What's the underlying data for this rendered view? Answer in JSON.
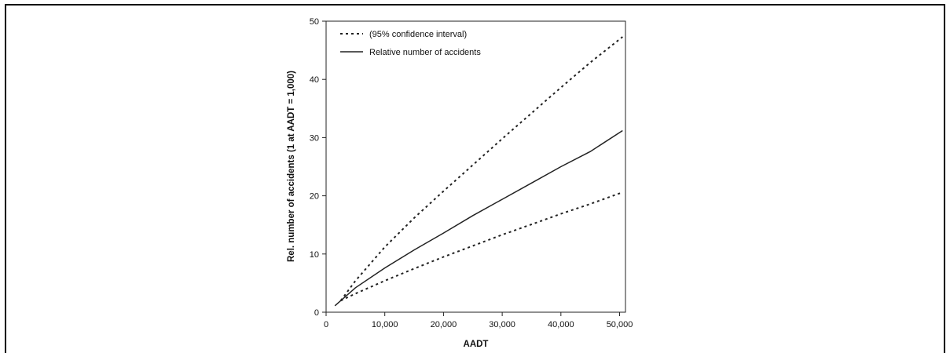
{
  "chart_data": {
    "type": "line",
    "title": "",
    "xlabel": "AADT",
    "ylabel": "Rel. number of accidents (1 at AADT = 1,000)",
    "xlim": [
      0,
      51000
    ],
    "ylim": [
      0,
      50
    ],
    "x_ticks": [
      0,
      10000,
      20000,
      30000,
      40000,
      50000
    ],
    "x_tick_labels": [
      "0",
      "10,000",
      "20,000",
      "30,000",
      "40,000",
      "50,000"
    ],
    "y_ticks": [
      0,
      10,
      20,
      30,
      40,
      50
    ],
    "y_tick_labels": [
      "0",
      "10",
      "20",
      "30",
      "40",
      "50"
    ],
    "grid": false,
    "legend_position": "top-left",
    "legend": [
      {
        "label": "(95% confidence interval)",
        "style": "dotted"
      },
      {
        "label": "Relative number of accidents",
        "style": "solid"
      }
    ],
    "series": [
      {
        "name": "Relative number of accidents",
        "style": "solid",
        "x": [
          1500,
          5000,
          10000,
          15000,
          20000,
          25000,
          30000,
          35000,
          40000,
          45000,
          50500
        ],
        "y": [
          1.1,
          4.2,
          7.6,
          10.7,
          13.6,
          16.6,
          19.4,
          22.2,
          25.0,
          27.6,
          31.2
        ]
      },
      {
        "name": "(95% confidence interval) upper",
        "style": "dotted",
        "x": [
          2500,
          5000,
          10000,
          15000,
          20000,
          25000,
          30000,
          35000,
          40000,
          45000,
          50500
        ],
        "y": [
          2.0,
          5.4,
          11.2,
          16.2,
          20.8,
          25.3,
          29.8,
          34.2,
          38.6,
          42.9,
          47.3
        ]
      },
      {
        "name": "(95% confidence interval) lower",
        "style": "dotted",
        "x": [
          2500,
          5000,
          10000,
          15000,
          20000,
          25000,
          30000,
          35000,
          40000,
          45000,
          50500
        ],
        "y": [
          2.0,
          3.2,
          5.4,
          7.5,
          9.5,
          11.4,
          13.3,
          15.1,
          16.9,
          18.6,
          20.6
        ]
      }
    ]
  }
}
